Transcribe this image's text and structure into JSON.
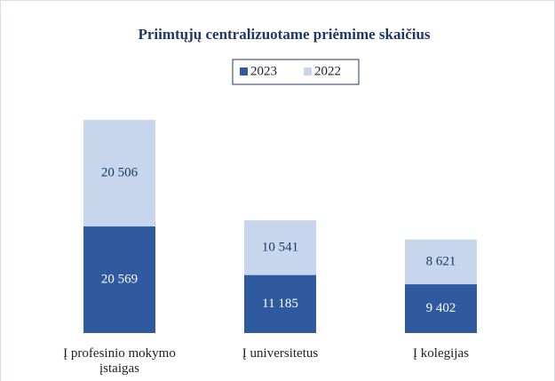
{
  "chart_data": {
    "type": "stacked_bar",
    "title": "Priimtųjų centralizuotame priėmime skaičius",
    "categories": [
      "Į profesinio mokymo įstaigas",
      "Į universitetus",
      "Į kolegijas"
    ],
    "series": [
      {
        "name": "2023",
        "color": "#2f5a9f",
        "values": [
          20569,
          11185,
          9402
        ],
        "value_labels": [
          "20 569",
          "11 185",
          "9 402"
        ]
      },
      {
        "name": "2022",
        "color": "#c7d6ed",
        "values": [
          20506,
          10541,
          8621
        ],
        "value_labels": [
          "20 506",
          "10 541",
          "8 621"
        ]
      }
    ]
  }
}
